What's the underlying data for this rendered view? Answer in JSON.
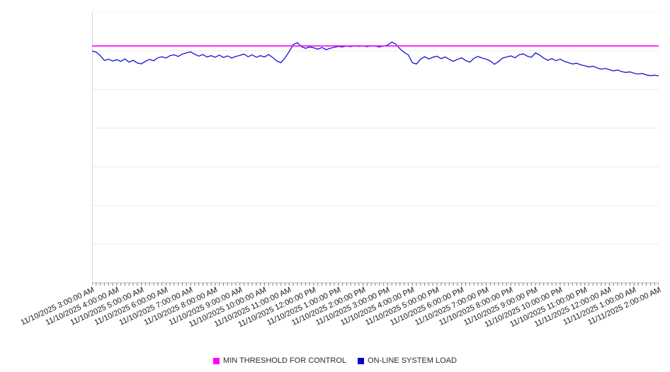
{
  "chart": {
    "legend": [
      {
        "label": "MIN THRESHOLD FOR CONTROL",
        "color": "#ff00ff"
      },
      {
        "label": "ON-LINE SYSTEM LOAD",
        "color": "#0000cd"
      }
    ]
  },
  "chart_data": {
    "type": "line",
    "title": "",
    "xlabel": "",
    "ylabel": "",
    "ylim": [
      0,
      100
    ],
    "grid": true,
    "grid_divisions": 7,
    "legend_position": "bottom",
    "points_per_label": 6,
    "x_tick_labels": [
      "11/10/2025 3:00:00 AM",
      "11/10/2025 4:00:00 AM",
      "11/10/2025 5:00:00 AM",
      "11/10/2025 6:00:00 AM",
      "11/10/2025 7:00:00 AM",
      "11/10/2025 8:00:00 AM",
      "11/10/2025 9:00:00 AM",
      "11/10/2025 10:00:00 AM",
      "11/10/2025 11:00:00 AM",
      "11/10/2025 12:00:00 PM",
      "11/10/2025 1:00:00 PM",
      "11/10/2025 2:00:00 PM",
      "11/10/2025 3:00:00 PM",
      "11/10/2025 4:00:00 PM",
      "11/10/2025 5:00:00 PM",
      "11/10/2025 6:00:00 PM",
      "11/10/2025 7:00:00 PM",
      "11/10/2025 8:00:00 PM",
      "11/10/2025 9:00:00 PM",
      "11/10/2025 10:00:00 PM",
      "11/10/2025 11:00:00 PM",
      "11/11/2025 12:00:00 AM",
      "11/11/2025 1:00:00 AM",
      "11/11/2025 2:00:00 AM"
    ],
    "series": [
      {
        "name": "MIN THRESHOLD FOR CONTROL",
        "style": "threshold",
        "color": "#ff00ff",
        "value": 87.5
      },
      {
        "name": "ON-LINE SYSTEM LOAD",
        "style": "line",
        "color": "#0000cd",
        "values": [
          85.6,
          85.2,
          83.9,
          82.1,
          82.6,
          81.9,
          82.4,
          81.8,
          82.7,
          81.5,
          82.2,
          81.2,
          80.9,
          81.8,
          82.5,
          82.0,
          83.1,
          83.5,
          83.0,
          83.9,
          84.2,
          83.6,
          84.5,
          84.9,
          85.3,
          84.4,
          83.7,
          84.3,
          83.4,
          83.9,
          83.3,
          84.1,
          83.2,
          83.8,
          83.0,
          83.6,
          84.0,
          84.5,
          83.5,
          84.2,
          83.3,
          83.9,
          83.4,
          84.3,
          83.2,
          81.9,
          81.3,
          83.1,
          85.4,
          88.0,
          88.7,
          87.2,
          86.6,
          87.1,
          86.8,
          86.3,
          86.9,
          86.1,
          86.6,
          87.0,
          87.3,
          87.1,
          87.5,
          87.2,
          87.6,
          87.3,
          87.5,
          87.2,
          87.6,
          87.4,
          87.1,
          87.5,
          87.8,
          88.9,
          88.1,
          86.4,
          85.1,
          84.2,
          81.3,
          80.8,
          82.6,
          83.5,
          82.7,
          83.3,
          83.7,
          82.8,
          83.4,
          82.5,
          81.8,
          82.5,
          83.1,
          82.1,
          81.5,
          82.9,
          83.6,
          83.0,
          82.6,
          81.9,
          80.7,
          81.7,
          83.0,
          83.4,
          83.8,
          83.1,
          84.2,
          84.6,
          83.7,
          83.3,
          84.9,
          84.1,
          83.0,
          82.2,
          82.8,
          82.0,
          82.6,
          81.8,
          81.3,
          80.8,
          81.1,
          80.5,
          80.2,
          79.7,
          80.0,
          79.4,
          78.9,
          79.2,
          78.7,
          78.3,
          78.6,
          78.0,
          77.7,
          77.9,
          77.4,
          77.1,
          77.3,
          76.8,
          76.5,
          76.7,
          76.4
        ]
      }
    ]
  }
}
